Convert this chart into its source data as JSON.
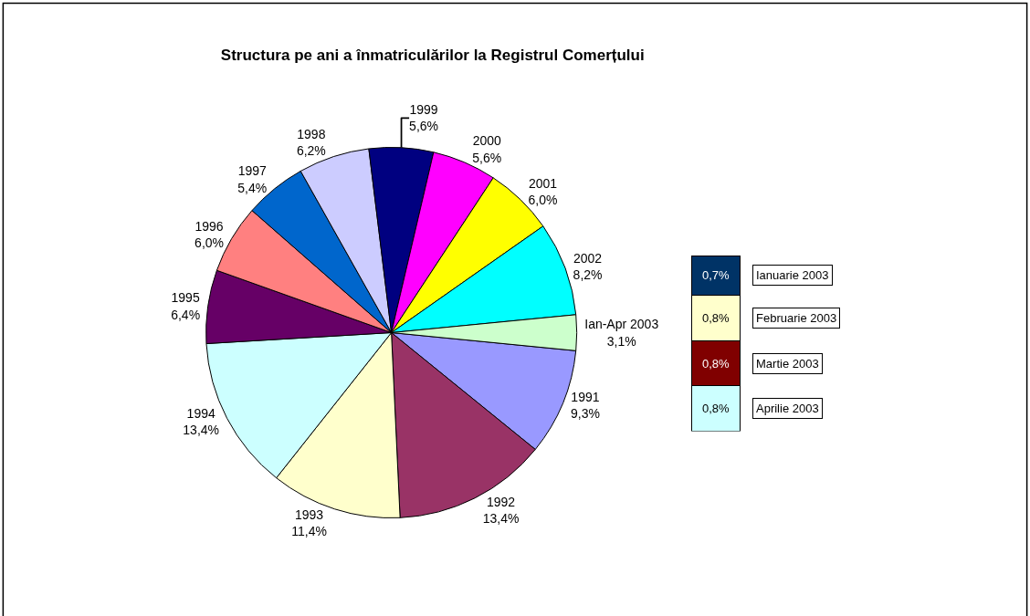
{
  "chart_data": [
    {
      "type": "pie",
      "title": "Structura pe ani a înmatriculărilor la Registrul Comerțului",
      "categories": [
        "1991",
        "1992",
        "1993",
        "1994",
        "1995",
        "1996",
        "1997",
        "1998",
        "1999",
        "2000",
        "2001",
        "2002",
        "Ian-Apr 2003"
      ],
      "values": [
        9.3,
        13.4,
        11.4,
        13.4,
        6.4,
        6.0,
        5.4,
        6.2,
        5.6,
        5.6,
        6.0,
        8.2,
        3.1
      ],
      "value_labels": [
        "9,3%",
        "13,4%",
        "11,4%",
        "13,4%",
        "6,4%",
        "6,0%",
        "5,4%",
        "6,2%",
        "5,6%",
        "5,6%",
        "6,0%",
        "8,2%",
        "3,1%"
      ],
      "colors": [
        "#9999ff",
        "#993366",
        "#ffffcc",
        "#ccffff",
        "#660066",
        "#ff8080",
        "#0066cc",
        "#ccccff",
        "#000080",
        "#ff00ff",
        "#ffff00",
        "#00ffff",
        "#ccffcc"
      ]
    },
    {
      "type": "bar",
      "stacked": true,
      "categories": [
        null
      ],
      "series": [
        {
          "name": "Aprilie 2003",
          "color": "#ccffff",
          "values": [
            0.8
          ],
          "value_labels": [
            "0,8%"
          ]
        },
        {
          "name": "Martie 2003",
          "color": "#800000",
          "values": [
            0.8
          ],
          "value_labels": [
            "0,8%"
          ]
        },
        {
          "name": "Februarie 2003",
          "color": "#ffffcc",
          "values": [
            0.8
          ],
          "value_labels": [
            "0,8%"
          ]
        },
        {
          "name": "Ianuarie 2003",
          "color": "#003366",
          "values": [
            0.7
          ],
          "value_labels": [
            "0,7%"
          ]
        }
      ]
    }
  ]
}
